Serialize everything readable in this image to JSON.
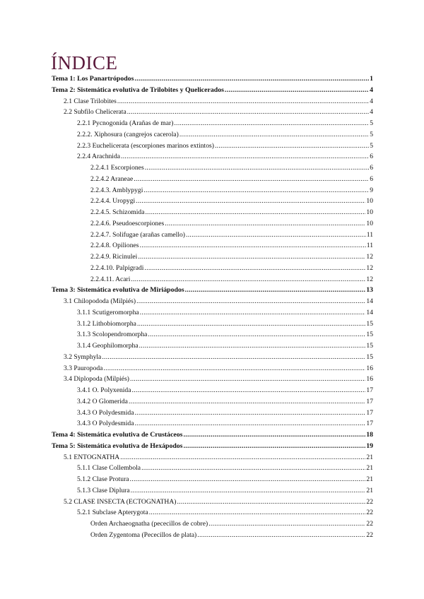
{
  "title": "ÍNDICE",
  "entries": [
    {
      "level": 0,
      "text": "Tema 1: Los Panartrópodos",
      "page": "1"
    },
    {
      "level": 0,
      "text": "Tema 2: Sistemática evolutiva de Trilobites y Quelicerados",
      "page": "4"
    },
    {
      "level": 1,
      "text": "2.1 Clase Trilobites",
      "page": "4"
    },
    {
      "level": 1,
      "text": "2.2 Subfilo Chelicerata",
      "page": "4"
    },
    {
      "level": 2,
      "text": "2.2.1 Pycnogonida (Arañas de mar)",
      "page": "5"
    },
    {
      "level": 2,
      "text": "2.2.2. Xiphosura (cangrejos cacerola)",
      "page": "5"
    },
    {
      "level": 2,
      "text": "2.2.3 Euchelicerata (escorpiones marinos extintos)",
      "page": "5"
    },
    {
      "level": 2,
      "text": "2.2.4 Arachnida",
      "page": "6"
    },
    {
      "level": 3,
      "text": "2.2.4.1 Escorpiones",
      "page": "6"
    },
    {
      "level": 3,
      "text": "2.2.4.2 Araneae",
      "page": "6"
    },
    {
      "level": 3,
      "text": "2.2.4.3.  Amblypygi",
      "page": "9"
    },
    {
      "level": 3,
      "text": "2.2.4.4. Uropygi",
      "page": "10"
    },
    {
      "level": 3,
      "text": "2.2.4.5. Schizomida",
      "page": "10"
    },
    {
      "level": 3,
      "text": "2.2.4.6. Pseudoescorpiones",
      "page": "10"
    },
    {
      "level": 3,
      "text": "2.2.4.7. Solifugae (arañas camello)",
      "page": "11"
    },
    {
      "level": 3,
      "text": "2.2.4.8. Opiliones",
      "page": "11"
    },
    {
      "level": 3,
      "text": "2.2.4.9. Ricinulei",
      "page": "12"
    },
    {
      "level": 3,
      "text": "2.2.4.10. Palpigradi",
      "page": "12"
    },
    {
      "level": 3,
      "text": "2.2.4.11. Acari",
      "page": "12"
    },
    {
      "level": 0,
      "text": "Tema 3: Sistemática evolutiva de Miriápodos",
      "page": "13"
    },
    {
      "level": 1,
      "text": "3.1 Chilopododa (Milpiés)",
      "page": "14"
    },
    {
      "level": 2,
      "text": "3.1.1 Scutigeromorpha",
      "page": "14"
    },
    {
      "level": 2,
      "text": "3.1.2 Lithobiomorpha",
      "page": "15"
    },
    {
      "level": 2,
      "text": "3.1.3 Scolopendromorpha",
      "page": "15"
    },
    {
      "level": 2,
      "text": "3.1.4 Geophilomorpha",
      "page": "15"
    },
    {
      "level": 1,
      "text": "3.2 Symphyla",
      "page": "15"
    },
    {
      "level": 1,
      "text": "3.3 Pauropoda",
      "page": "16"
    },
    {
      "level": 1,
      "text": "3.4 Diplopoda (Milpiés)",
      "page": "16"
    },
    {
      "level": 2,
      "text": "3.4.1 O. Polyxenida",
      "page": "17"
    },
    {
      "level": 2,
      "text": "3.4.2 O Glomerida",
      "page": "17"
    },
    {
      "level": 2,
      "text": "3.4.3 O Polydesmida",
      "page": "17"
    },
    {
      "level": 2,
      "text": "3.4.3 O Polydesmida",
      "page": "17"
    },
    {
      "level": 0,
      "text": "Tema 4: Sistemática evolutiva de Crustáceos",
      "page": "18"
    },
    {
      "level": 0,
      "text": "Tema 5: Sistemática evolutiva de Hexápodos",
      "page": "19"
    },
    {
      "level": 1,
      "text": "5.1 ENTOGNATHA",
      "page": "21"
    },
    {
      "level": 2,
      "text": "5.1.1 Clase Collembola",
      "page": "21"
    },
    {
      "level": 2,
      "text": "5.1.2 Clase Protura",
      "page": "21"
    },
    {
      "level": 2,
      "text": "5.1.3 Clase Diplura",
      "page": "21"
    },
    {
      "level": 1,
      "text": "5.2  CLASE INSECTA (ECTOGNATHA)",
      "page": "22"
    },
    {
      "level": 2,
      "text": "5.2.1 Subclase Apterygota",
      "page": "22"
    },
    {
      "level": 3,
      "text": "Orden Archaeognatha (pececillos de cobre)",
      "page": "22"
    },
    {
      "level": 3,
      "text": "Orden Zygentoma (Pececillos de plata)",
      "page": "22"
    }
  ],
  "colors": {
    "title": "#5b1a3c"
  }
}
